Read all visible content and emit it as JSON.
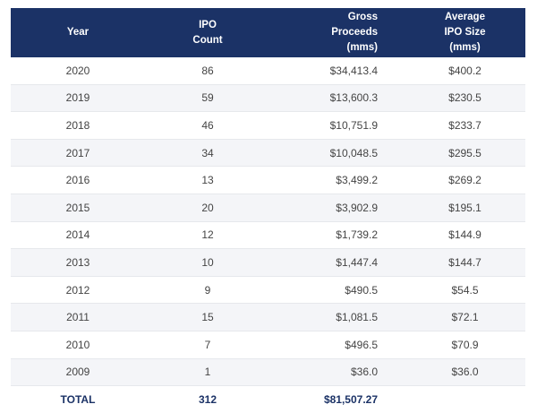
{
  "chart_data": {
    "type": "table",
    "columns": [
      [
        "Year"
      ],
      [
        "IPO",
        "Count"
      ],
      [
        "Gross",
        "Proceeds",
        "(mms)"
      ],
      [
        "Average",
        "IPO Size",
        "(mms)"
      ]
    ],
    "rows": [
      [
        "2020",
        "86",
        "$34,413.4",
        "$400.2"
      ],
      [
        "2019",
        "59",
        "$13,600.3",
        "$230.5"
      ],
      [
        "2018",
        "46",
        "$10,751.9",
        "$233.7"
      ],
      [
        "2017",
        "34",
        "$10,048.5",
        "$295.5"
      ],
      [
        "2016",
        "13",
        "$3,499.2",
        "$269.2"
      ],
      [
        "2015",
        "20",
        "$3,902.9",
        "$195.1"
      ],
      [
        "2014",
        "12",
        "$1,739.2",
        "$144.9"
      ],
      [
        "2013",
        "10",
        "$1,447.4",
        "$144.7"
      ],
      [
        "2012",
        "9",
        "$490.5",
        "$54.5"
      ],
      [
        "2011",
        "15",
        "$1,081.5",
        "$72.1"
      ],
      [
        "2010",
        "7",
        "$496.5",
        "$70.9"
      ],
      [
        "2009",
        "1",
        "$36.0",
        "$36.0"
      ]
    ],
    "total": [
      "TOTAL",
      "312",
      "$81,507.27",
      ""
    ]
  },
  "colors": {
    "header_bg": "#1b3266",
    "header_text": "#ffffff",
    "stripe": "#f4f5f8",
    "total_text": "#1b3266"
  }
}
